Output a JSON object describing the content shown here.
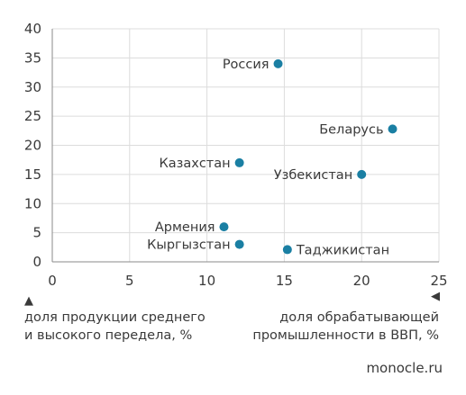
{
  "chart_data": {
    "type": "scatter",
    "xlim": [
      0,
      25
    ],
    "ylim": [
      0,
      40
    ],
    "x_ticks": [
      0,
      5,
      10,
      15,
      20,
      25
    ],
    "y_ticks": [
      0,
      5,
      10,
      15,
      20,
      25,
      30,
      35,
      40
    ],
    "grid": true,
    "point_color": "#1a7fa3",
    "points": [
      {
        "label": "Россия",
        "x": 14.6,
        "y": 34.0,
        "label_side": "left"
      },
      {
        "label": "Беларусь",
        "x": 22.0,
        "y": 22.8,
        "label_side": "left"
      },
      {
        "label": "Казахстан",
        "x": 12.1,
        "y": 17.0,
        "label_side": "left"
      },
      {
        "label": "Узбекистан",
        "x": 20.0,
        "y": 15.0,
        "label_side": "left"
      },
      {
        "label": "Армения",
        "x": 11.1,
        "y": 6.0,
        "label_side": "left"
      },
      {
        "label": "Кыргызстан",
        "x": 12.1,
        "y": 3.0,
        "label_side": "left"
      },
      {
        "label": "Таджикистан",
        "x": 15.2,
        "y": 2.1,
        "label_side": "right"
      }
    ],
    "x_caption": "доля продукции среднего\nи высокого передела, %",
    "y_caption": "доля обрабатывающей\nпромышленности в ВВП, %"
  },
  "icons": {
    "x_arrow": "▲",
    "y_arrow": "◀"
  },
  "source": "monocle.ru"
}
